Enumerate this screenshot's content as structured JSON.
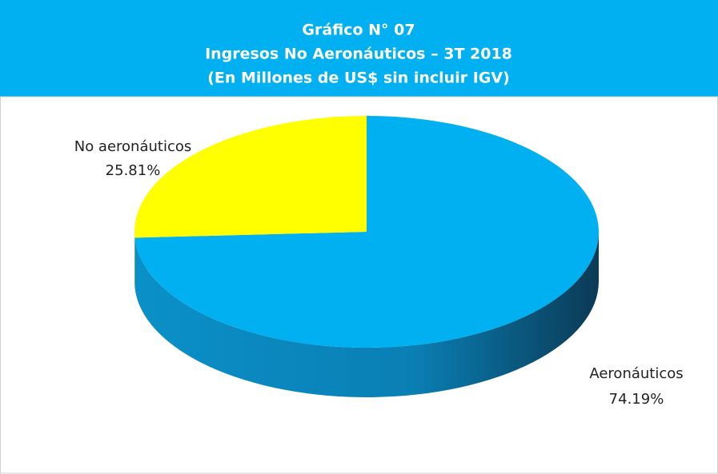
{
  "chart_data": {
    "type": "pie",
    "title": "Gráfico N° 07",
    "subtitle": [
      "Ingresos No Aeronáuticos – 3T 2018",
      "(En Millones de US$  sin incluir IGV)"
    ],
    "categories": [
      "Aeronáuticos",
      "No aeronáuticos"
    ],
    "values": [
      74.19,
      25.81
    ],
    "value_labels": [
      "74.19%",
      "25.81%"
    ],
    "colors": [
      "#00b0f0",
      "#ffff00"
    ]
  }
}
